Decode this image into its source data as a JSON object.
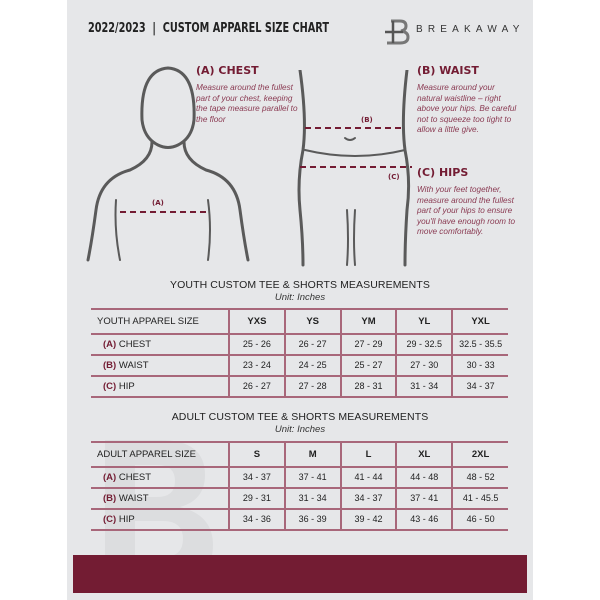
{
  "header": {
    "title": "2022/2023  |  CUSTOM APPAREL SIZE CHART",
    "brand": "BREAKAWAY",
    "logo_letter": "B"
  },
  "colors": {
    "accent": "#731c33",
    "background": "#e6e7e9"
  },
  "measures": {
    "chest": {
      "title": "(A) CHEST",
      "marker": "(A)",
      "desc": "Measure around the fullest part of your chest, keeping the tape measure parallel to the floor"
    },
    "waist": {
      "title": "(B) WAIST",
      "marker": "(B)",
      "desc": "Measure around your natural waistline – right above your hips. Be careful not to squeeze too tight to allow a little give."
    },
    "hips": {
      "title": "(C) HIPS",
      "marker": "(C)",
      "desc": "With your feet together, measure around the fullest part of your hips to ensure you'll have enough room to move comfortably."
    }
  },
  "youth": {
    "title": "YOUTH CUSTOM TEE & SHORTS MEASUREMENTS",
    "unit": "Unit: Inches",
    "header": "YOUTH APPAREL SIZE",
    "sizes": [
      "YXS",
      "YS",
      "YM",
      "YL",
      "YXL"
    ],
    "rows": [
      {
        "code": "(A)",
        "label": "CHEST",
        "values": [
          "25 - 26",
          "26 - 27",
          "27 - 29",
          "29 - 32.5",
          "32.5 - 35.5"
        ]
      },
      {
        "code": "(B)",
        "label": "WAIST",
        "values": [
          "23 - 24",
          "24 - 25",
          "25 - 27",
          "27 - 30",
          "30 - 33"
        ]
      },
      {
        "code": "(C)",
        "label": "HIP",
        "values": [
          "26 - 27",
          "27 - 28",
          "28 - 31",
          "31 - 34",
          "34 - 37"
        ]
      }
    ]
  },
  "adult": {
    "title": "ADULT CUSTOM TEE & SHORTS MEASUREMENTS",
    "unit": "Unit: Inches",
    "header": "ADULT APPAREL SIZE",
    "sizes": [
      "S",
      "M",
      "L",
      "XL",
      "2XL"
    ],
    "rows": [
      {
        "code": "(A)",
        "label": "CHEST",
        "values": [
          "34 - 37",
          "37 - 41",
          "41 - 44",
          "44 - 48",
          "48 - 52"
        ]
      },
      {
        "code": "(B)",
        "label": "WAIST",
        "values": [
          "29 - 31",
          "31 - 34",
          "34 - 37",
          "37 - 41",
          "41 - 45.5"
        ]
      },
      {
        "code": "(C)",
        "label": "HIP",
        "values": [
          "34 - 36",
          "36 - 39",
          "39 - 42",
          "43 - 46",
          "46 - 50"
        ]
      }
    ]
  }
}
